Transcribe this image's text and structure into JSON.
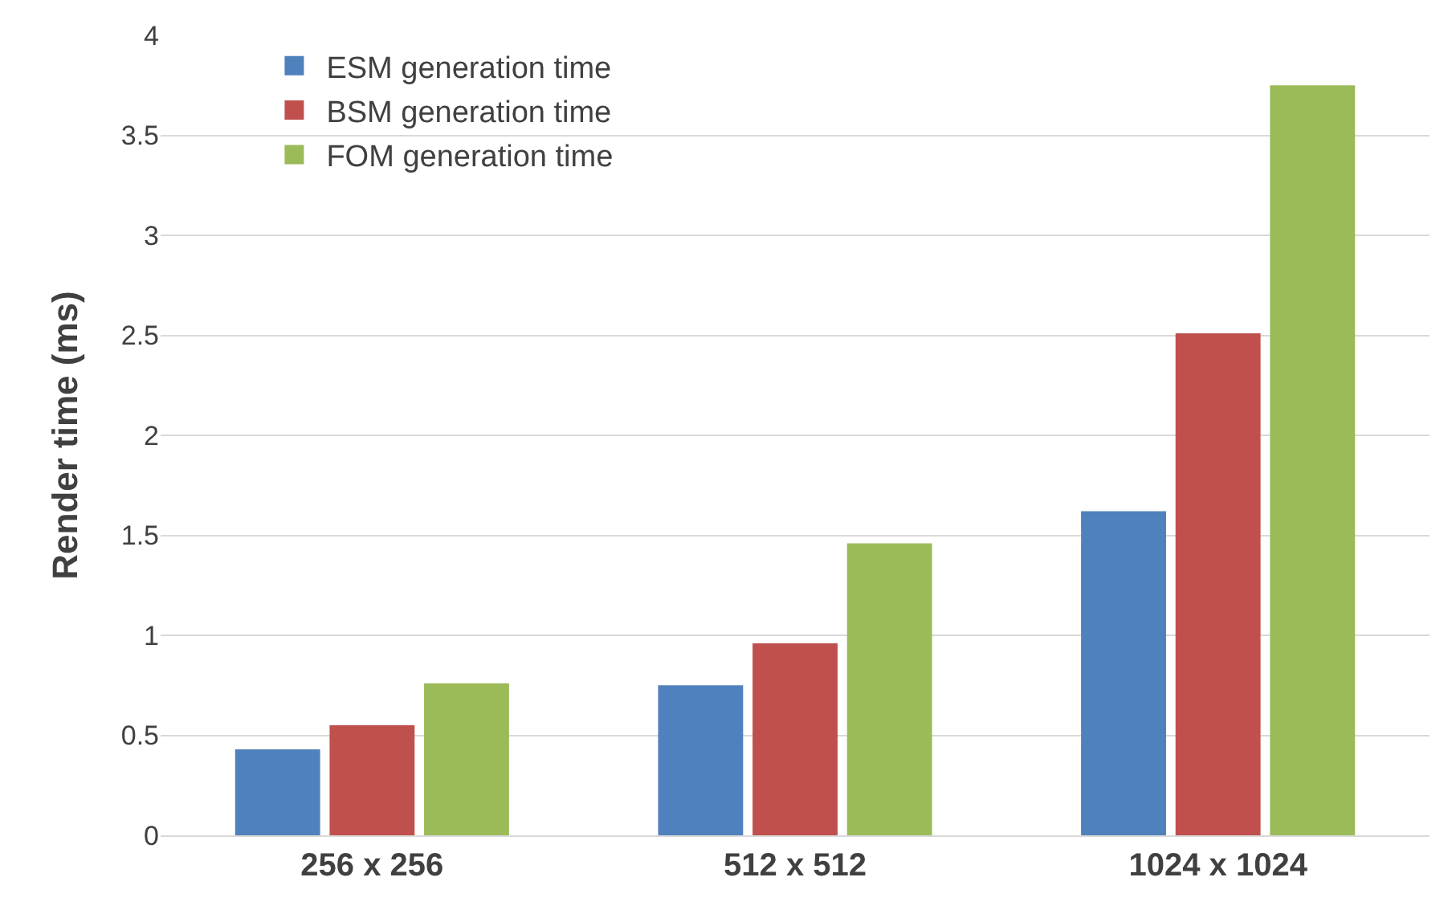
{
  "chart_data": {
    "type": "bar",
    "ylabel": "Render time (ms)",
    "categories": [
      "256 x 256",
      "512 x 512",
      "1024 x 1024"
    ],
    "series": [
      {
        "name": "ESM generation time",
        "color": "#4f81bd",
        "values": [
          0.43,
          0.75,
          1.62
        ]
      },
      {
        "name": "BSM generation time",
        "color": "#c0504d",
        "values": [
          0.55,
          0.96,
          2.51
        ]
      },
      {
        "name": "FOM generation time",
        "color": "#9bbb59",
        "values": [
          0.76,
          1.46,
          3.75
        ]
      }
    ],
    "ylim": [
      0,
      4
    ],
    "yticks": [
      0,
      0.5,
      1,
      1.5,
      2,
      2.5,
      3,
      3.5,
      4
    ],
    "grid": "y",
    "legend": "top left"
  }
}
